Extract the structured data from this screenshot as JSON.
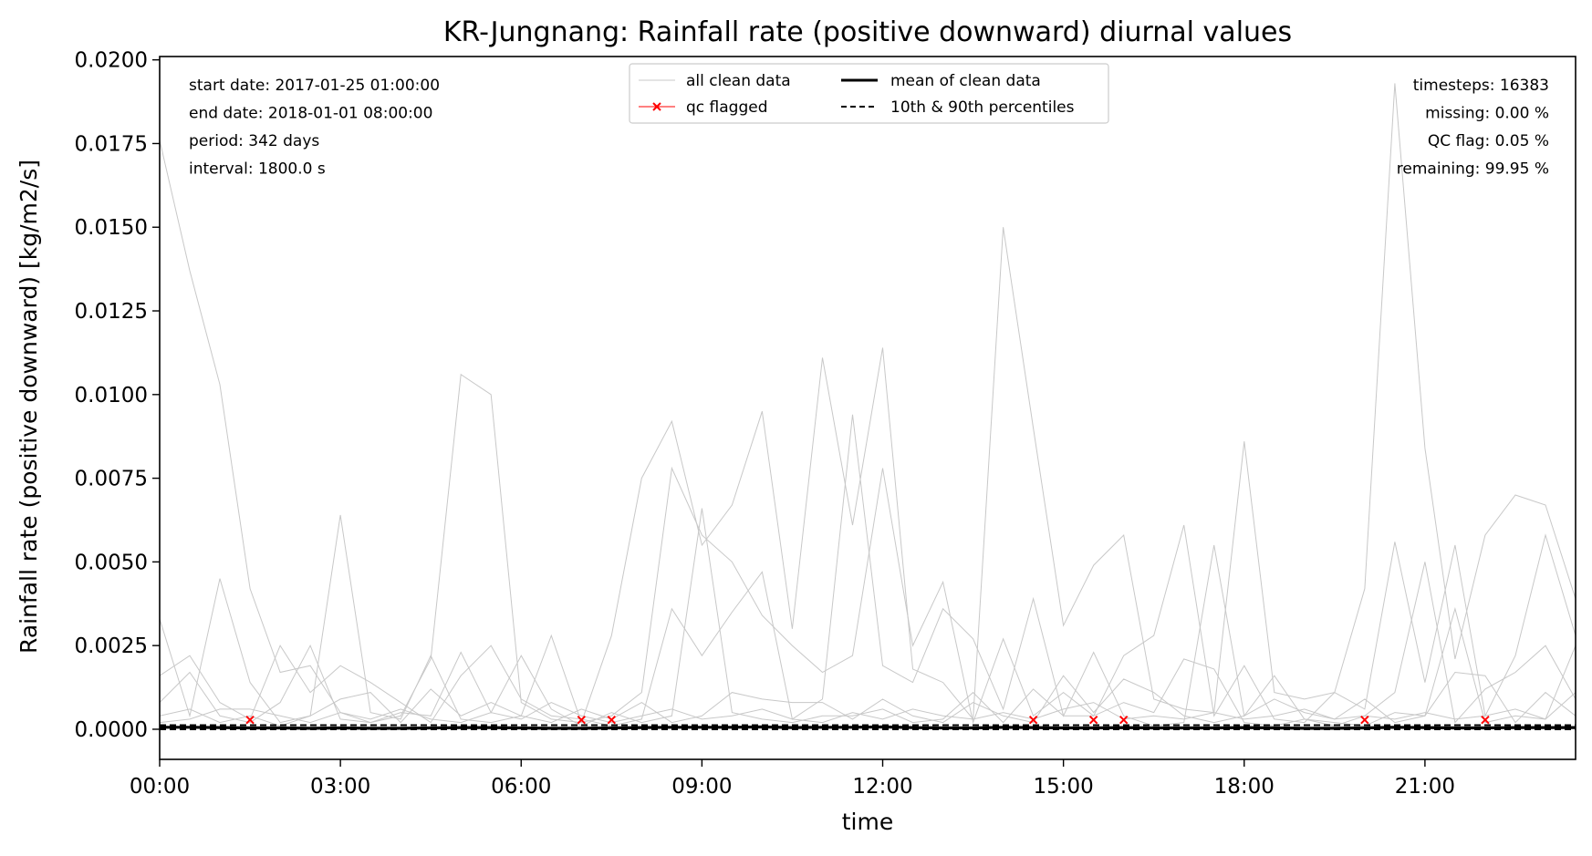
{
  "chart_data": {
    "type": "line",
    "title": "KR-Jungnang: Rainfall rate (positive downward) diurnal values",
    "xlabel": "time",
    "ylabel": "Rainfall rate (positive downward) [kg/m2/s]",
    "xlim": [
      0,
      23.5
    ],
    "ylim": [
      -0.0009,
      0.0201
    ],
    "xticks": [
      0,
      3,
      6,
      9,
      12,
      15,
      18,
      21
    ],
    "xtick_labels": [
      "00:00",
      "03:00",
      "06:00",
      "09:00",
      "12:00",
      "15:00",
      "18:00",
      "21:00"
    ],
    "yticks": [
      0,
      0.0025,
      0.005,
      0.0075,
      0.01,
      0.0125,
      0.015,
      0.0175,
      0.02
    ],
    "ytick_labels": [
      "0.0000",
      "0.0025",
      "0.0050",
      "0.0075",
      "0.0100",
      "0.0125",
      "0.0150",
      "0.0175",
      "0.0200"
    ],
    "grid": false,
    "legend_position": "top-center",
    "legend": [
      {
        "label": "all clean data",
        "style": "thin-gray"
      },
      {
        "label": "qc flagged",
        "style": "red-x"
      },
      {
        "label": "mean of clean data",
        "style": "thick-black"
      },
      {
        "label": "10th & 90th percentiles",
        "style": "dashed-black"
      }
    ],
    "info_left": [
      "start date: 2017-01-25 01:00:00",
      "end date: 2018-01-01 08:00:00",
      "period: 342 days",
      "interval: 1800.0 s"
    ],
    "info_right": [
      "timesteps: 16383",
      "missing: 0.00 %",
      "QC flag: 0.05 %",
      "remaining: 99.95 %"
    ],
    "colors": {
      "clean": "#c8c8c8",
      "flagged": "#ff0000",
      "mean": "#000000",
      "percentile": "#000000"
    },
    "series": [
      {
        "name": "all clean data",
        "x": [
          0,
          0.5,
          1,
          1.5,
          2,
          2.5,
          3,
          3.5,
          4,
          4.5,
          5,
          5.5,
          6,
          6.5,
          7,
          7.5,
          8,
          8.5,
          9,
          9.5,
          10,
          10.5,
          11,
          11.5,
          12,
          12.5,
          13,
          13.5,
          14,
          14.5,
          15,
          15.5,
          16,
          16.5,
          17,
          17.5,
          18,
          18.5,
          19,
          19.5,
          20,
          20.5,
          21,
          21.5,
          22,
          22.5,
          23,
          23.5
        ],
        "y": [
          0.0176,
          0.0137,
          0.0103,
          0.0042,
          0.0017,
          0.0019,
          0.0005,
          0.0002,
          0.0004,
          0.0021,
          0.0106,
          0.01,
          0.0008,
          0.0003,
          0.0002,
          0.0028,
          0.0075,
          0.0092,
          0.0055,
          0.0067,
          0.0095,
          0.003,
          0.0111,
          0.0061,
          0.0114,
          0.0018,
          0.0014,
          0.0003,
          0.015,
          0.009,
          0.0031,
          0.0049,
          0.0058,
          0.0009,
          0.0006,
          0.0005,
          0.0086,
          0.0011,
          0.0009,
          0.0011,
          0.0042,
          0.0193,
          0.0084,
          0.0021,
          0.0058,
          0.007,
          0.0067,
          0.0039
        ]
      },
      {
        "name": "all clean data",
        "x": [
          0,
          0.5,
          1,
          1.5,
          2,
          2.5,
          3,
          3.5,
          4,
          4.5,
          5,
          5.5,
          6,
          6.5,
          7,
          7.5,
          8,
          8.5,
          9,
          9.5,
          10,
          10.5,
          11,
          11.5,
          12,
          12.5,
          13,
          13.5,
          14,
          14.5,
          15,
          15.5,
          16,
          16.5,
          17,
          17.5,
          18,
          18.5,
          19,
          19.5,
          20,
          20.5,
          21,
          21.5,
          22,
          22.5,
          23,
          23.5
        ],
        "y": [
          0.0033,
          0.0004,
          0.0045,
          0.0014,
          0.0002,
          0.0004,
          0.0064,
          0.0005,
          0.0003,
          0.0022,
          0.0003,
          0.0002,
          0.0004,
          0.0028,
          0.0002,
          0.0004,
          0.0011,
          0.0078,
          0.0058,
          0.005,
          0.0034,
          0.0025,
          0.0017,
          0.0022,
          0.0078,
          0.0025,
          0.0044,
          0.0002,
          0.0027,
          0.0004,
          0.0011,
          0.0004,
          0.0022,
          0.0028,
          0.0061,
          0.0004,
          0.0019,
          0.0003,
          0.0002,
          0.0011,
          0.0006,
          0.0056,
          0.0014,
          0.0055,
          0.0004,
          0.0022,
          0.0058,
          0.0028
        ]
      },
      {
        "name": "all clean data",
        "x": [
          0,
          0.5,
          1,
          1.5,
          2,
          2.5,
          3,
          3.5,
          4,
          4.5,
          5,
          5.5,
          6,
          6.5,
          7,
          7.5,
          8,
          8.5,
          9,
          9.5,
          10,
          10.5,
          11,
          11.5,
          12,
          12.5,
          13,
          13.5,
          14,
          14.5,
          15,
          15.5,
          16,
          16.5,
          17,
          17.5,
          18,
          18.5,
          19,
          19.5,
          20,
          20.5,
          21,
          21.5,
          22,
          22.5,
          23,
          23.5
        ],
        "y": [
          0.0016,
          0.0022,
          0.0008,
          0.0003,
          0.0025,
          0.0011,
          0.0019,
          0.0014,
          0.0008,
          0.0002,
          0.0016,
          0.0025,
          0.0009,
          0.0004,
          0.0003,
          0.0001,
          0.0003,
          0.0036,
          0.0022,
          0.0035,
          0.0047,
          0.0003,
          0.0009,
          0.0094,
          0.0019,
          0.0014,
          0.0036,
          0.0027,
          0.0006,
          0.0039,
          0.0004,
          0.0023,
          0.0004,
          0.0001,
          0.0002,
          0.0055,
          0.0004,
          0.0016,
          0.0003,
          0.0001,
          0.0004,
          0.0011,
          0.005,
          0.0002,
          0.0012,
          0.0017,
          0.0025,
          0.0009
        ]
      },
      {
        "name": "all clean data",
        "x": [
          0,
          0.5,
          1,
          1.5,
          2,
          2.5,
          3,
          3.5,
          4,
          4.5,
          5,
          5.5,
          6,
          6.5,
          7,
          7.5,
          8,
          8.5,
          9,
          9.5,
          10,
          10.5,
          11,
          11.5,
          12,
          12.5,
          13,
          13.5,
          14,
          14.5,
          15,
          15.5,
          16,
          16.5,
          17,
          17.5,
          18,
          18.5,
          19,
          19.5,
          20,
          20.5,
          21,
          21.5,
          22,
          22.5,
          23,
          23.5
        ],
        "y": [
          0.0008,
          0.0017,
          0.0004,
          0.0002,
          0.0008,
          0.0025,
          0.0003,
          0.0002,
          0.0005,
          0.0004,
          0.0023,
          0.0005,
          0.0022,
          0.0006,
          0.0001,
          0.0005,
          0.0002,
          0.0004,
          0.0066,
          0.0005,
          0.0003,
          0.0002,
          0.0004,
          0.0004,
          0.0006,
          0.0002,
          0.0003,
          0.0011,
          0.0002,
          0.0012,
          0.0004,
          0.0004,
          0.0008,
          0.0005,
          0.0021,
          0.0018,
          0.0002,
          0.0001,
          0.0003,
          0.0002,
          0.0001,
          0.0005,
          0.0004,
          0.0036,
          0.0002,
          0.0004,
          0.0003,
          0.0025
        ]
      },
      {
        "name": "all clean data",
        "x": [
          0,
          0.5,
          1,
          1.5,
          2,
          2.5,
          3,
          3.5,
          4,
          4.5,
          5,
          5.5,
          6,
          6.5,
          7,
          7.5,
          8,
          8.5,
          9,
          9.5,
          10,
          10.5,
          11,
          11.5,
          12,
          12.5,
          13,
          13.5,
          14,
          14.5,
          15,
          15.5,
          16,
          16.5,
          17,
          17.5,
          18,
          18.5,
          19,
          19.5,
          20,
          20.5,
          21,
          21.5,
          22,
          22.5,
          23,
          23.5
        ],
        "y": [
          0.0004,
          0.0006,
          0.0002,
          0.0004,
          0.0001,
          0.0004,
          0.0009,
          0.0011,
          0.0002,
          0.0012,
          0.0004,
          0.0008,
          0.0004,
          0.0002,
          0.0006,
          0.0003,
          0.0008,
          0.0002,
          0.0004,
          0.0011,
          0.0009,
          0.0008,
          0.0008,
          0.0003,
          0.0009,
          0.0004,
          0.0002,
          0.0008,
          0.0004,
          0.0002,
          0.0016,
          0.0005,
          0.0015,
          0.0011,
          0.0004,
          0.0002,
          0.0004,
          0.0009,
          0.0005,
          0.0003,
          0.0009,
          0.0002,
          0.0004,
          0.0017,
          0.0016,
          0.0002,
          0.0011,
          0.0004
        ]
      },
      {
        "name": "all clean data",
        "x": [
          0,
          0.5,
          1,
          1.5,
          2,
          2.5,
          3,
          3.5,
          4,
          4.5,
          5,
          5.5,
          6,
          6.5,
          7,
          7.5,
          8,
          8.5,
          9,
          9.5,
          10,
          10.5,
          11,
          11.5,
          12,
          12.5,
          13,
          13.5,
          14,
          14.5,
          15,
          15.5,
          16,
          16.5,
          17,
          17.5,
          18,
          18.5,
          19,
          19.5,
          20,
          20.5,
          21,
          21.5,
          22,
          22.5,
          23,
          23.5
        ],
        "y": [
          0.0002,
          0.0003,
          0.0006,
          0.0006,
          0.0004,
          0.0002,
          0.0005,
          0.0003,
          0.0006,
          0.0003,
          0.0002,
          0.0005,
          0.0003,
          0.0008,
          0.0004,
          0.0002,
          0.0004,
          0.0006,
          0.0003,
          0.0004,
          0.0006,
          0.0003,
          0.0002,
          0.0005,
          0.0003,
          0.0006,
          0.0004,
          0.0003,
          0.0005,
          0.0003,
          0.0006,
          0.0008,
          0.0003,
          0.0004,
          0.0003,
          0.0005,
          0.0003,
          0.0004,
          0.0006,
          0.0003,
          0.0004,
          0.0003,
          0.0005,
          0.0003,
          0.0004,
          0.0006,
          0.0003,
          0.0011
        ]
      },
      {
        "name": "mean of clean data",
        "x": [
          0,
          0.5,
          1,
          1.5,
          2,
          2.5,
          3,
          3.5,
          4,
          4.5,
          5,
          5.5,
          6,
          6.5,
          7,
          7.5,
          8,
          8.5,
          9,
          9.5,
          10,
          10.5,
          11,
          11.5,
          12,
          12.5,
          13,
          13.5,
          14,
          14.5,
          15,
          15.5,
          16,
          16.5,
          17,
          17.5,
          18,
          18.5,
          19,
          19.5,
          20,
          20.5,
          21,
          21.5,
          22,
          22.5,
          23,
          23.5
        ],
        "y": [
          6e-05,
          6e-05,
          5e-05,
          4e-05,
          4e-05,
          3e-05,
          4e-05,
          3e-05,
          3e-05,
          4e-05,
          5e-05,
          5e-05,
          4e-05,
          3e-05,
          3e-05,
          4e-05,
          5e-05,
          6e-05,
          6e-05,
          6e-05,
          7e-05,
          5e-05,
          6e-05,
          6e-05,
          7e-05,
          5e-05,
          4e-05,
          4e-05,
          6e-05,
          5e-05,
          4e-05,
          4e-05,
          5e-05,
          4e-05,
          4e-05,
          4e-05,
          5e-05,
          4e-05,
          3e-05,
          3e-05,
          4e-05,
          6e-05,
          5e-05,
          4e-05,
          4e-05,
          5e-05,
          5e-05,
          5e-05
        ]
      }
    ],
    "percentile_10": 0.0,
    "percentile_90": 0.00012,
    "qc_flagged": {
      "name": "qc flagged",
      "x": [
        1.5,
        7,
        7.5,
        14.5,
        15.5,
        16,
        20,
        22
      ],
      "y": [
        0.00028,
        0.00028,
        0.00028,
        0.00028,
        0.00028,
        0.00028,
        0.00028,
        0.00028
      ]
    }
  }
}
